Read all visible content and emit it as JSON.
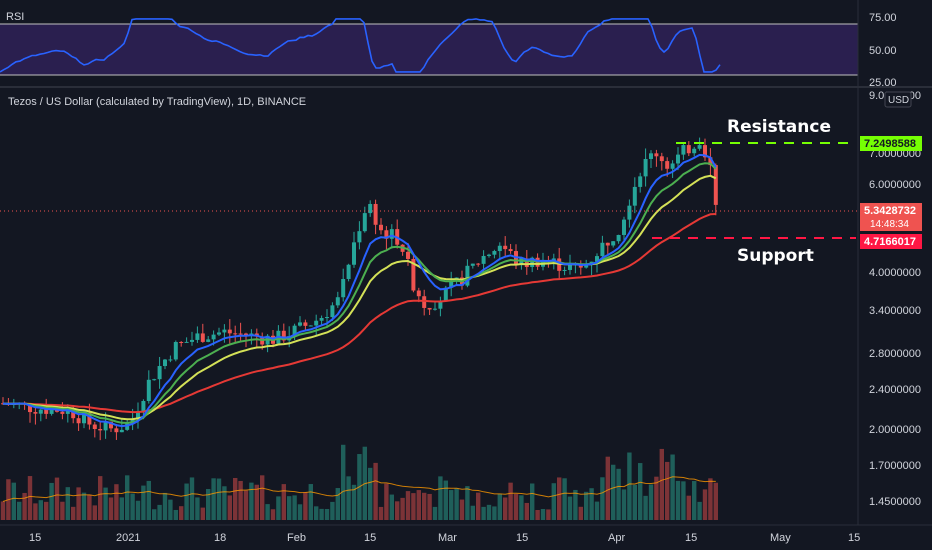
{
  "header": {
    "title": "Tezos / US Dollar (calculated by TradingView), 1D, BINANCE",
    "currency_button": "USD"
  },
  "rsi": {
    "label": "RSI",
    "ticks": [
      "75.00",
      "50.00",
      "25.00"
    ]
  },
  "annotations": {
    "resistance": "Resistance",
    "support": "Support"
  },
  "price_labels": {
    "resistance": "7.2498588",
    "current": "5.3428732",
    "countdown": "14:48:34",
    "support": "4.7166017"
  },
  "colors": {
    "background": "#131722",
    "up": "#26a69a",
    "down": "#ef5350",
    "ema_fast": "#2962ff",
    "ema_mid": "#4caf50",
    "ema_slow_yellow": "#d4e157",
    "ema_long": "#e53935",
    "rsi_line": "#2962ff",
    "rsi_band": "#2a1f4f",
    "resistance": "#76ff03",
    "support": "#ff1744"
  },
  "chart_data": {
    "type": "candlestick",
    "symbol": "XTZUSD",
    "interval": "1D",
    "exchange": "BINANCE",
    "y_scale": "log",
    "price_ticks": [
      "9.0000000",
      "7.0000000",
      "6.0000000",
      "4.0000000",
      "3.4000000",
      "2.8000000",
      "2.4000000",
      "2.0000000",
      "1.7000000",
      "1.4500000"
    ],
    "x_ticks": [
      "15",
      "2021",
      "18",
      "Feb",
      "15",
      "Mar",
      "15",
      "Apr",
      "15",
      "May",
      "15"
    ],
    "x_range": [
      "2020-12-06",
      "2021-05-19"
    ],
    "series_summary": {
      "price_start_dec": 2.2,
      "price_low_jan": 1.9,
      "price_high_feb": 5.8,
      "price_high_apr": 7.6,
      "last_close": 5.3428732
    },
    "levels": {
      "resistance": 7.2498588,
      "support": 4.7166017,
      "current": 5.3428732
    },
    "rsi_range": [
      25,
      75
    ]
  }
}
